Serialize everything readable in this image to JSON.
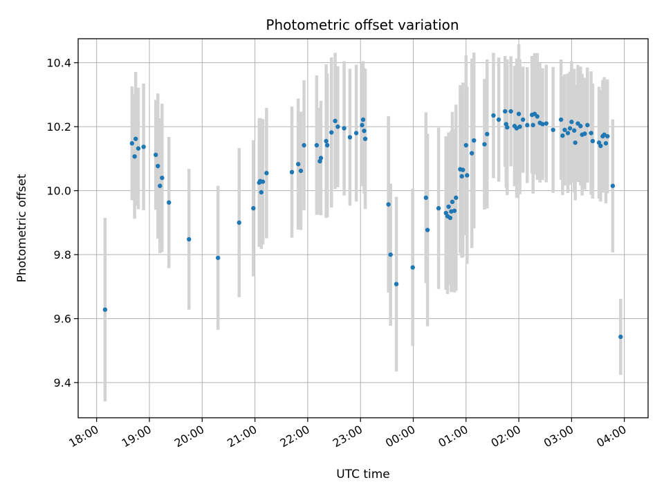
{
  "chart_data": {
    "type": "scatter",
    "title": "Photometric offset variation",
    "xlabel": "UTC time",
    "ylabel": "Photometric offset",
    "x_unit": "hours since 18:00 UTC",
    "xlim": [
      -0.35,
      10.45
    ],
    "ylim": [
      9.29,
      10.475
    ],
    "grid": true,
    "x_ticks": [
      {
        "value": 0,
        "label": "18:00"
      },
      {
        "value": 1,
        "label": "19:00"
      },
      {
        "value": 2,
        "label": "20:00"
      },
      {
        "value": 3,
        "label": "21:00"
      },
      {
        "value": 4,
        "label": "22:00"
      },
      {
        "value": 5,
        "label": "23:00"
      },
      {
        "value": 6,
        "label": "00:00"
      },
      {
        "value": 7,
        "label": "01:00"
      },
      {
        "value": 8,
        "label": "02:00"
      },
      {
        "value": 9,
        "label": "03:00"
      },
      {
        "value": 10,
        "label": "04:00"
      }
    ],
    "y_ticks": [
      {
        "value": 9.4,
        "label": "9.4"
      },
      {
        "value": 9.6,
        "label": "9.6"
      },
      {
        "value": 9.8,
        "label": "9.8"
      },
      {
        "value": 10.0,
        "label": "10.0"
      },
      {
        "value": 10.2,
        "label": "10.2"
      },
      {
        "value": 10.4,
        "label": "10.4"
      }
    ],
    "marker_color": "#1f77b4",
    "errorbar_color": "#d3d3d3",
    "points": [
      [
        0.16,
        9.628,
        0.287
      ],
      [
        0.67,
        10.148,
        0.178
      ],
      [
        0.72,
        10.107,
        0.195
      ],
      [
        0.74,
        10.162,
        0.209
      ],
      [
        0.79,
        10.132,
        0.19
      ],
      [
        0.89,
        10.137,
        0.198
      ],
      [
        1.12,
        10.112,
        0.172
      ],
      [
        1.16,
        10.077,
        0.227
      ],
      [
        1.2,
        10.015,
        0.211
      ],
      [
        1.24,
        10.04,
        0.232
      ],
      [
        1.37,
        9.963,
        0.205
      ],
      [
        1.75,
        9.848,
        0.22
      ],
      [
        2.3,
        9.79,
        0.225
      ],
      [
        2.7,
        9.9,
        0.233
      ],
      [
        2.97,
        9.945,
        0.213
      ],
      [
        3.08,
        10.025,
        0.201
      ],
      [
        3.1,
        10.03,
        0.197
      ],
      [
        3.12,
        9.995,
        0.177
      ],
      [
        3.15,
        10.028,
        0.196
      ],
      [
        3.22,
        10.055,
        0.204
      ],
      [
        3.7,
        10.058,
        0.205
      ],
      [
        3.82,
        10.083,
        0.205
      ],
      [
        3.87,
        10.062,
        0.185
      ],
      [
        3.93,
        10.142,
        0.203
      ],
      [
        4.17,
        10.142,
        0.218
      ],
      [
        4.23,
        10.092,
        0.167
      ],
      [
        4.25,
        10.102,
        0.179
      ],
      [
        4.35,
        10.155,
        0.24
      ],
      [
        4.37,
        10.142,
        0.225
      ],
      [
        4.45,
        10.182,
        0.235
      ],
      [
        4.52,
        10.218,
        0.213
      ],
      [
        4.57,
        10.2,
        0.189
      ],
      [
        4.69,
        10.195,
        0.21
      ],
      [
        4.8,
        10.167,
        0.214
      ],
      [
        4.92,
        10.18,
        0.214
      ],
      [
        5.03,
        10.205,
        0.191
      ],
      [
        5.05,
        10.222,
        0.183
      ],
      [
        5.07,
        10.187,
        0.196
      ],
      [
        5.09,
        10.162,
        0.219
      ],
      [
        5.53,
        9.957,
        0.276
      ],
      [
        5.57,
        9.8,
        0.222
      ],
      [
        5.68,
        9.708,
        0.273
      ],
      [
        5.99,
        9.76,
        0.246
      ],
      [
        6.24,
        9.978,
        0.267
      ],
      [
        6.27,
        9.877,
        0.301
      ],
      [
        6.48,
        9.945,
        0.252
      ],
      [
        6.62,
        9.93,
        0.24
      ],
      [
        6.65,
        9.92,
        0.243
      ],
      [
        6.67,
        9.95,
        0.232
      ],
      [
        6.7,
        9.915,
        0.211
      ],
      [
        6.72,
        9.935,
        0.252
      ],
      [
        6.74,
        9.965,
        0.281
      ],
      [
        6.78,
        9.937,
        0.255
      ],
      [
        6.81,
        9.978,
        0.291
      ],
      [
        6.89,
        10.067,
        0.263
      ],
      [
        6.92,
        10.045,
        0.255
      ],
      [
        6.94,
        10.065,
        0.273
      ],
      [
        7.0,
        10.142,
        0.281
      ],
      [
        7.02,
        10.048,
        0.277
      ],
      [
        7.11,
        10.117,
        0.296
      ],
      [
        7.15,
        10.157,
        0.275
      ],
      [
        7.35,
        10.145,
        0.204
      ],
      [
        7.4,
        10.177,
        0.233
      ],
      [
        7.52,
        10.235,
        0.196
      ],
      [
        7.62,
        10.222,
        0.194
      ],
      [
        7.74,
        10.248,
        0.173
      ],
      [
        7.76,
        10.208,
        0.199
      ],
      [
        7.78,
        10.198,
        0.212
      ],
      [
        7.85,
        10.248,
        0.172
      ],
      [
        7.92,
        10.202,
        0.188
      ],
      [
        7.96,
        10.195,
        0.218
      ],
      [
        8.0,
        10.24,
        0.218
      ],
      [
        8.02,
        10.2,
        0.211
      ],
      [
        8.08,
        10.222,
        0.166
      ],
      [
        8.16,
        10.205,
        0.181
      ],
      [
        8.25,
        10.237,
        0.184
      ],
      [
        8.27,
        10.205,
        0.214
      ],
      [
        8.3,
        10.24,
        0.19
      ],
      [
        8.35,
        10.232,
        0.198
      ],
      [
        8.4,
        10.212,
        0.187
      ],
      [
        8.45,
        10.208,
        0.175
      ],
      [
        8.52,
        10.21,
        0.184
      ],
      [
        8.65,
        10.19,
        0.197
      ],
      [
        8.8,
        10.222,
        0.188
      ],
      [
        8.83,
        10.172,
        0.186
      ],
      [
        8.87,
        10.19,
        0.174
      ],
      [
        8.93,
        10.18,
        0.187
      ],
      [
        8.97,
        10.195,
        0.177
      ],
      [
        9.0,
        10.215,
        0.19
      ],
      [
        9.05,
        10.188,
        0.193
      ],
      [
        9.07,
        10.15,
        0.18
      ],
      [
        9.12,
        10.21,
        0.183
      ],
      [
        9.17,
        10.202,
        0.186
      ],
      [
        9.2,
        10.175,
        0.19
      ],
      [
        9.25,
        10.178,
        0.175
      ],
      [
        9.3,
        10.205,
        0.18
      ],
      [
        9.37,
        10.18,
        0.193
      ],
      [
        9.4,
        10.155,
        0.18
      ],
      [
        9.52,
        10.15,
        0.175
      ],
      [
        9.55,
        10.14,
        0.174
      ],
      [
        9.59,
        10.17,
        0.176
      ],
      [
        9.62,
        10.175,
        0.18
      ],
      [
        9.65,
        10.148,
        0.188
      ],
      [
        9.68,
        10.17,
        0.178
      ],
      [
        9.78,
        10.015,
        0.208
      ],
      [
        9.93,
        9.543,
        0.119
      ]
    ]
  }
}
